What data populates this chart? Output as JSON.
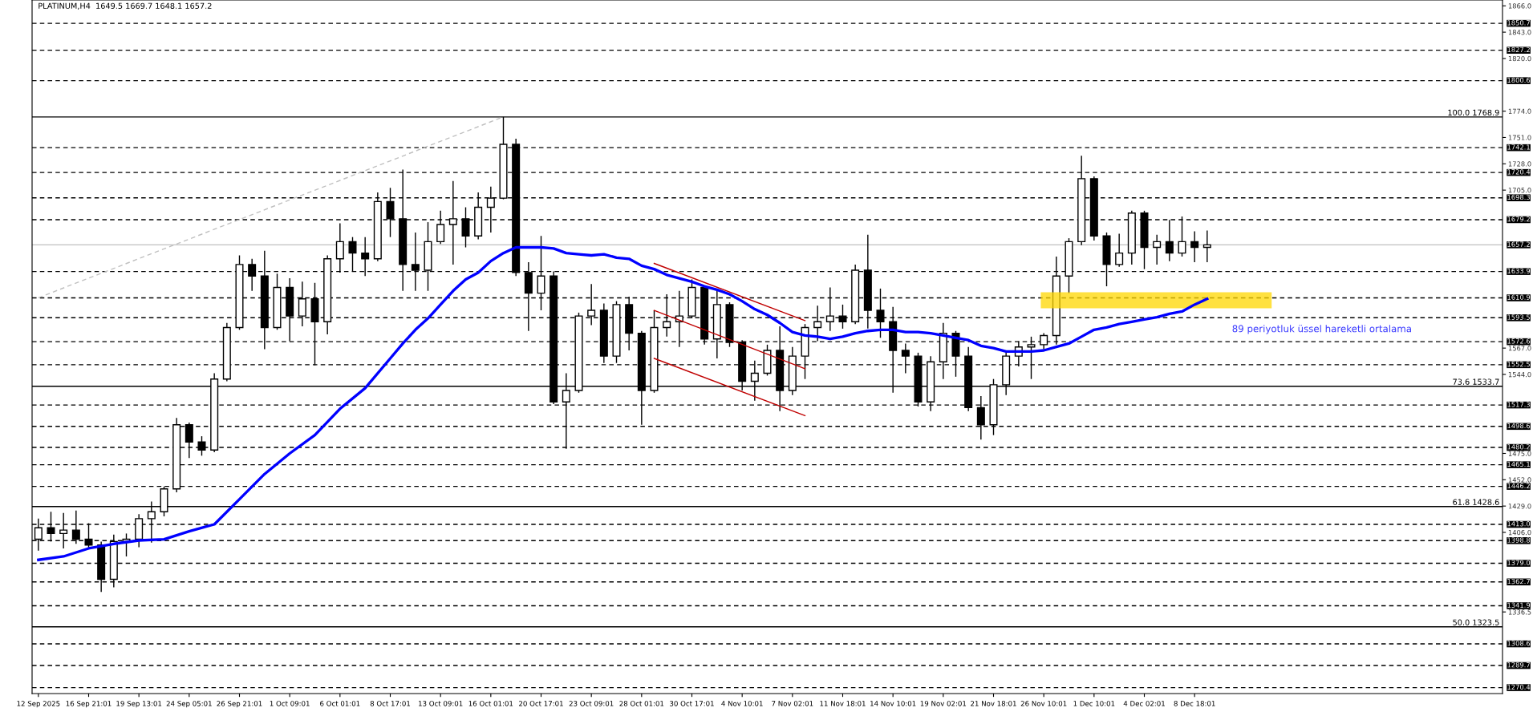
{
  "chart_data": {
    "type": "candlestick",
    "title": "PLATINUM,H4  1649.5 1669.7 1648.1 1657.2",
    "categories": [
      "12 Sep 2025",
      null,
      null,
      null,
      "16 Sep 21:01",
      null,
      null,
      null,
      "19 Sep 13:01",
      null,
      null,
      null,
      "24 Sep 05:01",
      null,
      null,
      null,
      "26 Sep 21:01",
      null,
      null,
      null,
      "1 Oct 09:01",
      null,
      null,
      null,
      "6 Oct 01:01",
      null,
      null,
      null,
      "8 Oct 17:01",
      null,
      null,
      null,
      "13 Oct 09:01",
      null,
      null,
      null,
      "16 Oct 01:01",
      null,
      null,
      null,
      "20 Oct 17:01",
      null,
      null,
      null,
      "23 Oct 09:01",
      null,
      null,
      null,
      "28 Oct 01:01",
      null,
      null,
      null,
      "30 Oct 17:01",
      null,
      null,
      null,
      "4 Nov 10:01",
      null,
      null,
      null,
      "7 Nov 02:01",
      null,
      null,
      null,
      "11 Nov 18:01",
      null,
      null,
      null,
      "14 Nov 10:01",
      null,
      null,
      null,
      "19 Nov 02:01",
      null,
      null,
      null,
      "21 Nov 18:01",
      null,
      null,
      null,
      "26 Nov 10:01",
      null,
      null,
      null,
      "1 Dec 10:01",
      null,
      null,
      null,
      "4 Dec 02:01",
      null,
      null,
      null,
      "8 Dec 18:01",
      null,
      null,
      null,
      null,
      null,
      null,
      null,
      null,
      null,
      null,
      null,
      null,
      null,
      null,
      null,
      null,
      null,
      null,
      null,
      null,
      null,
      null,
      null,
      null
    ],
    "ohlc": [
      [
        1400,
        1418,
        1390,
        1410
      ],
      [
        1410,
        1424,
        1398,
        1405
      ],
      [
        1405,
        1423,
        1392,
        1408
      ],
      [
        1408,
        1425,
        1396,
        1400
      ],
      [
        1400,
        1414,
        1392,
        1395
      ],
      [
        1395,
        1398,
        1354,
        1365
      ],
      [
        1365,
        1404,
        1358,
        1398
      ],
      [
        1398,
        1405,
        1385,
        1400
      ],
      [
        1400,
        1422,
        1393,
        1418
      ],
      [
        1418,
        1433,
        1397,
        1424
      ],
      [
        1424,
        1446,
        1420,
        1444
      ],
      [
        1444,
        1506,
        1441,
        1500
      ],
      [
        1500,
        1502,
        1471,
        1485
      ],
      [
        1485,
        1490,
        1473,
        1478
      ],
      [
        1478,
        1545,
        1476,
        1540
      ],
      [
        1540,
        1589,
        1538,
        1585
      ],
      [
        1585,
        1648,
        1583,
        1640
      ],
      [
        1640,
        1645,
        1617,
        1630
      ],
      [
        1630,
        1652,
        1566,
        1585
      ],
      [
        1585,
        1632,
        1583,
        1620
      ],
      [
        1620,
        1628,
        1573,
        1595
      ],
      [
        1595,
        1625,
        1586,
        1610
      ],
      [
        1610,
        1624,
        1552,
        1590
      ],
      [
        1590,
        1648,
        1579,
        1645
      ],
      [
        1645,
        1676,
        1633,
        1660
      ],
      [
        1660,
        1664,
        1634,
        1650
      ],
      [
        1650,
        1664,
        1630,
        1645
      ],
      [
        1645,
        1703,
        1643,
        1695
      ],
      [
        1695,
        1707,
        1664,
        1680
      ],
      [
        1680,
        1723,
        1617,
        1640
      ],
      [
        1640,
        1668,
        1617,
        1635
      ],
      [
        1635,
        1677,
        1617,
        1660
      ],
      [
        1660,
        1687,
        1658,
        1675
      ],
      [
        1675,
        1713,
        1640,
        1680
      ],
      [
        1680,
        1690,
        1655,
        1665
      ],
      [
        1665,
        1703,
        1662,
        1690
      ],
      [
        1690,
        1708,
        1668,
        1698
      ],
      [
        1698,
        1769,
        1697,
        1745
      ],
      [
        1745,
        1750,
        1630,
        1633
      ],
      [
        1633,
        1642,
        1582,
        1615
      ],
      [
        1615,
        1665,
        1600,
        1630
      ],
      [
        1630,
        1634,
        1518,
        1520
      ],
      [
        1520,
        1545,
        1479,
        1530
      ],
      [
        1530,
        1598,
        1528,
        1595
      ],
      [
        1595,
        1623,
        1587,
        1600
      ],
      [
        1600,
        1606,
        1554,
        1560
      ],
      [
        1560,
        1608,
        1554,
        1605
      ],
      [
        1605,
        1612,
        1565,
        1580
      ],
      [
        1580,
        1582,
        1500,
        1530
      ],
      [
        1530,
        1600,
        1528,
        1585
      ],
      [
        1585,
        1614,
        1577,
        1590
      ],
      [
        1590,
        1617,
        1568,
        1595
      ],
      [
        1595,
        1627,
        1593,
        1620
      ],
      [
        1620,
        1621,
        1570,
        1575
      ],
      [
        1575,
        1617,
        1558,
        1605
      ],
      [
        1605,
        1607,
        1568,
        1572
      ],
      [
        1572,
        1574,
        1530,
        1538
      ],
      [
        1538,
        1556,
        1521,
        1545
      ],
      [
        1545,
        1570,
        1543,
        1565
      ],
      [
        1565,
        1586,
        1512,
        1530
      ],
      [
        1530,
        1568,
        1526,
        1560
      ],
      [
        1560,
        1588,
        1540,
        1585
      ],
      [
        1585,
        1604,
        1573,
        1590
      ],
      [
        1590,
        1620,
        1582,
        1595
      ],
      [
        1595,
        1605,
        1584,
        1590
      ],
      [
        1590,
        1640,
        1588,
        1635
      ],
      [
        1635,
        1666,
        1584,
        1600
      ],
      [
        1600,
        1619,
        1576,
        1590
      ],
      [
        1590,
        1603,
        1528,
        1565
      ],
      [
        1565,
        1571,
        1545,
        1560
      ],
      [
        1560,
        1563,
        1516,
        1520
      ],
      [
        1520,
        1560,
        1512,
        1555
      ],
      [
        1555,
        1589,
        1540,
        1580
      ],
      [
        1580,
        1582,
        1542,
        1560
      ],
      [
        1560,
        1568,
        1512,
        1515
      ],
      [
        1515,
        1525,
        1487,
        1500
      ],
      [
        1500,
        1540,
        1491,
        1535
      ],
      [
        1535,
        1563,
        1526,
        1560
      ],
      [
        1560,
        1573,
        1551,
        1568
      ],
      [
        1568,
        1577,
        1540,
        1570
      ],
      [
        1570,
        1580,
        1566,
        1578
      ],
      [
        1578,
        1647,
        1570,
        1630
      ],
      [
        1630,
        1663,
        1615,
        1660
      ],
      [
        1660,
        1735,
        1657,
        1715
      ],
      [
        1715,
        1717,
        1661,
        1665
      ],
      [
        1665,
        1668,
        1621,
        1640
      ],
      [
        1640,
        1667,
        1638,
        1650
      ],
      [
        1650,
        1687,
        1640,
        1685
      ],
      [
        1685,
        1687,
        1636,
        1655
      ],
      [
        1655,
        1666,
        1640,
        1660
      ],
      [
        1660,
        1679,
        1643,
        1650
      ],
      [
        1650,
        1682,
        1647,
        1660
      ],
      [
        1660,
        1669,
        1642,
        1655
      ],
      [
        1655,
        1669.7,
        1642,
        1657.2
      ],
      null,
      null,
      null,
      null,
      null,
      null,
      null,
      null,
      null,
      null,
      null,
      null,
      null,
      null,
      null,
      null,
      null,
      null,
      null,
      null,
      null,
      null,
      null
    ],
    "series": [
      {
        "type": "line",
        "color": "#0000ff",
        "values": [
          1382,
          null,
          1385,
          null,
          1392,
          null,
          1396,
          null,
          1399,
          null,
          1400,
          null,
          1407,
          null,
          1413,
          null,
          1435,
          null,
          1457,
          null,
          1475,
          null,
          1491,
          null,
          1514,
          null,
          1532,
          null,
          1558,
          1571,
          1583,
          1593,
          1605,
          1617,
          1627,
          1633,
          1643,
          1650,
          1655,
          1655,
          1655,
          1654,
          1650,
          1649,
          1648,
          1649,
          1646,
          1645,
          1639,
          1636,
          1631,
          1628,
          1625,
          1621,
          1618,
          1614,
          1608,
          1601,
          1596,
          1589,
          1581,
          1578,
          1577,
          1575,
          1577,
          1580,
          1582,
          1583,
          1583,
          1581,
          1581,
          1580,
          1578,
          1576,
          1574,
          1569,
          1567,
          1564,
          1564,
          1564,
          1565,
          1568,
          1571,
          1577,
          1583,
          1585,
          1588,
          1590,
          1592,
          1594,
          1597,
          1599,
          1605,
          1610,
          null,
          null,
          null,
          null,
          null,
          null,
          null,
          null,
          null,
          null,
          null,
          null,
          null,
          null,
          null,
          null,
          null,
          null,
          null,
          null,
          null,
          null,
          null
        ]
      },
      {
        "type": "line",
        "color": "#c00000",
        "values": [
          null,
          null,
          null,
          null,
          null,
          null,
          null,
          null,
          null,
          null,
          null,
          null,
          null,
          null,
          null,
          null,
          null,
          null,
          null,
          null,
          null,
          null,
          null,
          null,
          null,
          null,
          null,
          null,
          null,
          null,
          null,
          null,
          null,
          null,
          null,
          null,
          null,
          null,
          null,
          null,
          null,
          null,
          null,
          null,
          null,
          null,
          null,
          null,
          null,
          1641,
          null,
          null,
          null,
          null,
          null,
          null,
          null,
          null,
          null,
          null,
          null,
          1591,
          null,
          null,
          null,
          null,
          null,
          null,
          null,
          null,
          null,
          null,
          null,
          null,
          null,
          null,
          null,
          null,
          null,
          null,
          null,
          null,
          null,
          null,
          null,
          null,
          null,
          null,
          null,
          null,
          null,
          null,
          null,
          null,
          null,
          null,
          null,
          null,
          null,
          null,
          null,
          null,
          null,
          null,
          null,
          null,
          null,
          null,
          null,
          null,
          null,
          null,
          null,
          null,
          null,
          null,
          null
        ]
      },
      {
        "type": "line",
        "color": "#c00000",
        "values": [
          null,
          null,
          null,
          null,
          null,
          null,
          null,
          null,
          null,
          null,
          null,
          null,
          null,
          null,
          null,
          null,
          null,
          null,
          null,
          null,
          null,
          null,
          null,
          null,
          null,
          null,
          null,
          null,
          null,
          null,
          null,
          null,
          null,
          null,
          null,
          null,
          null,
          null,
          null,
          null,
          null,
          null,
          null,
          null,
          null,
          null,
          null,
          null,
          null,
          1600,
          null,
          null,
          null,
          null,
          null,
          null,
          null,
          null,
          null,
          null,
          null,
          1549,
          null,
          null,
          null,
          null,
          null,
          null,
          null,
          null,
          null,
          null,
          null,
          null,
          null,
          null,
          null,
          null,
          null,
          null,
          null,
          null,
          null,
          null,
          null,
          null,
          null,
          null,
          null,
          null,
          null,
          null,
          null,
          null,
          null,
          null,
          null,
          null,
          null,
          null,
          null,
          null,
          null,
          null,
          null,
          null,
          null,
          null,
          null,
          null,
          null,
          null,
          null,
          null,
          null,
          null,
          null
        ]
      },
      {
        "type": "line",
        "color": "#c00000",
        "values": [
          null,
          null,
          null,
          null,
          null,
          null,
          null,
          null,
          null,
          null,
          null,
          null,
          null,
          null,
          null,
          null,
          null,
          null,
          null,
          null,
          null,
          null,
          null,
          null,
          null,
          null,
          null,
          null,
          null,
          null,
          null,
          null,
          null,
          null,
          null,
          null,
          null,
          null,
          null,
          null,
          null,
          null,
          null,
          null,
          null,
          null,
          null,
          null,
          null,
          1558,
          null,
          null,
          null,
          null,
          null,
          null,
          null,
          null,
          null,
          null,
          null,
          1508,
          null,
          null,
          null,
          null,
          null,
          null,
          null,
          null,
          null,
          null,
          null,
          null,
          null,
          null,
          null,
          null,
          null,
          null,
          null,
          null,
          null,
          null,
          null,
          null,
          null,
          null,
          null,
          null,
          null,
          null,
          null,
          null,
          null,
          null,
          null,
          null,
          null,
          null,
          null,
          null,
          null,
          null,
          null,
          null,
          null,
          null,
          null,
          null,
          null,
          null,
          null,
          null,
          null,
          null,
          null
        ]
      },
      {
        "type": "line",
        "color": "#c0c0c0",
        "line_style": "dashed",
        "values": [
          1611,
          null,
          null,
          null,
          null,
          null,
          null,
          null,
          null,
          null,
          null,
          null,
          null,
          null,
          null,
          null,
          null,
          null,
          null,
          null,
          null,
          null,
          null,
          null,
          null,
          null,
          null,
          null,
          null,
          null,
          null,
          null,
          null,
          null,
          null,
          null,
          null,
          1769,
          null,
          null,
          null,
          null,
          null,
          null,
          null,
          null,
          null,
          null,
          null,
          null,
          null,
          null,
          null,
          null,
          null,
          null,
          null,
          null,
          null,
          null,
          null,
          null,
          null,
          null,
          null,
          null,
          null,
          null,
          null,
          null,
          null,
          null,
          null,
          null,
          null,
          null,
          null,
          null,
          null,
          null,
          null,
          null,
          null,
          null,
          null,
          null,
          null,
          null,
          null,
          null,
          null,
          null,
          null,
          null,
          null,
          null,
          null,
          null,
          null,
          null,
          null,
          null,
          null,
          null,
          null,
          null,
          null,
          null,
          null,
          null,
          null,
          null,
          null,
          null,
          null,
          null,
          null
        ]
      }
    ],
    "bands": [
      {
        "axis": "y",
        "from": 1601.7,
        "to": 1615.7,
        "color": "#ffd700"
      }
    ],
    "ref_lines": [
      {
        "axis": "y",
        "value": 1850.7,
        "label": "1850.7",
        "color": "#000000",
        "line_style": "dashed"
      },
      {
        "axis": "y",
        "value": 1827.2,
        "label": "1827.2",
        "color": "#000000",
        "line_style": "dashed"
      },
      {
        "axis": "y",
        "value": 1800.6,
        "label": "1800.6",
        "color": "#000000",
        "line_style": "dashed"
      },
      {
        "axis": "y",
        "value": 1768.9,
        "label": "100.0 1768.9",
        "color": "#000000",
        "line_style": "solid"
      },
      {
        "axis": "y",
        "value": 1742.1,
        "label": "1742.1",
        "color": "#000000",
        "line_style": "dashed"
      },
      {
        "axis": "y",
        "value": 1720.4,
        "label": "1720.4",
        "color": "#000000",
        "line_style": "dashed"
      },
      {
        "axis": "y",
        "value": 1698.3,
        "label": "1698.3",
        "color": "#000000",
        "line_style": "dashed"
      },
      {
        "axis": "y",
        "value": 1679.2,
        "label": "1679.2",
        "color": "#000000",
        "line_style": "dashed"
      },
      {
        "axis": "y",
        "value": 1657.2,
        "label": "1657.2",
        "color": "#c0c0c0",
        "line_style": "solid"
      },
      {
        "axis": "y",
        "value": 1633.9,
        "label": "1633.9",
        "color": "#000000",
        "line_style": "dashed"
      },
      {
        "axis": "y",
        "value": 1610.9,
        "label": "1610.9",
        "color": "#000000",
        "line_style": "dashed"
      },
      {
        "axis": "y",
        "value": 1593.5,
        "label": "1593.5",
        "color": "#000000",
        "line_style": "dashed"
      },
      {
        "axis": "y",
        "value": 1572.6,
        "label": "1572.6",
        "color": "#000000",
        "line_style": "dashed"
      },
      {
        "axis": "y",
        "value": 1552.5,
        "label": "1552.5",
        "color": "#000000",
        "line_style": "dashed"
      },
      {
        "axis": "y",
        "value": 1533.7,
        "label": "73.6 1533.7",
        "color": "#000000",
        "line_style": "solid"
      },
      {
        "axis": "y",
        "value": 1517.3,
        "label": "1517.3",
        "color": "#000000",
        "line_style": "dashed"
      },
      {
        "axis": "y",
        "value": 1498.6,
        "label": "1498.6",
        "color": "#000000",
        "line_style": "dashed"
      },
      {
        "axis": "y",
        "value": 1480.2,
        "label": "1480.2",
        "color": "#000000",
        "line_style": "dashed"
      },
      {
        "axis": "y",
        "value": 1465.1,
        "label": "1465.1",
        "color": "#000000",
        "line_style": "dashed"
      },
      {
        "axis": "y",
        "value": 1446.2,
        "label": "1446.2",
        "color": "#000000",
        "line_style": "dashed"
      },
      {
        "axis": "y",
        "value": 1428.6,
        "label": "61.8 1428.6",
        "color": "#000000",
        "line_style": "solid"
      },
      {
        "axis": "y",
        "value": 1413.0,
        "label": "1413.0",
        "color": "#000000",
        "line_style": "dashed"
      },
      {
        "axis": "y",
        "value": 1398.8,
        "label": "1398.8",
        "color": "#000000",
        "line_style": "dashed"
      },
      {
        "axis": "y",
        "value": 1379.0,
        "label": "1379.0",
        "color": "#000000",
        "line_style": "dashed"
      },
      {
        "axis": "y",
        "value": 1362.7,
        "label": "1362.7",
        "color": "#000000",
        "line_style": "dashed"
      },
      {
        "axis": "y",
        "value": 1341.9,
        "label": "1341.9",
        "color": "#000000",
        "line_style": "dashed"
      },
      {
        "axis": "y",
        "value": 1323.5,
        "label": "50.0 1323.5",
        "color": "#000000",
        "line_style": "solid"
      },
      {
        "axis": "y",
        "value": 1308.6,
        "label": "1308.6",
        "color": "#000000",
        "line_style": "dashed"
      },
      {
        "axis": "y",
        "value": 1289.7,
        "label": "1289.7",
        "color": "#000000",
        "line_style": "dashed"
      },
      {
        "axis": "y",
        "value": 1270.4,
        "label": "1270.4",
        "color": "#000000",
        "line_style": "dashed"
      }
    ],
    "annotations": [
      "89 periyotluk üssel hareketli ortalama"
    ],
    "ylim": [
      1265.2,
      1871.1
    ],
    "yticks": [
      {
        "value": 1866,
        "label": "1866.0"
      },
      {
        "value": 1843,
        "label": "1843.0"
      },
      {
        "value": 1820,
        "label": "1820.0"
      },
      {
        "value": 1774,
        "label": "1774.0"
      },
      {
        "value": 1751,
        "label": "1751.0"
      },
      {
        "value": 1728,
        "label": "1728.0"
      },
      {
        "value": 1705,
        "label": "1705.0"
      },
      {
        "value": 1567,
        "label": "1567.0"
      },
      {
        "value": 1544,
        "label": "1544.0"
      },
      {
        "value": 1475,
        "label": "1475.0"
      },
      {
        "value": 1452,
        "label": "1452.0"
      },
      {
        "value": 1429,
        "label": "1429.0"
      },
      {
        "value": 1406,
        "label": "1406.0"
      },
      {
        "value": 1336.5,
        "label": "1336.5"
      }
    ]
  }
}
